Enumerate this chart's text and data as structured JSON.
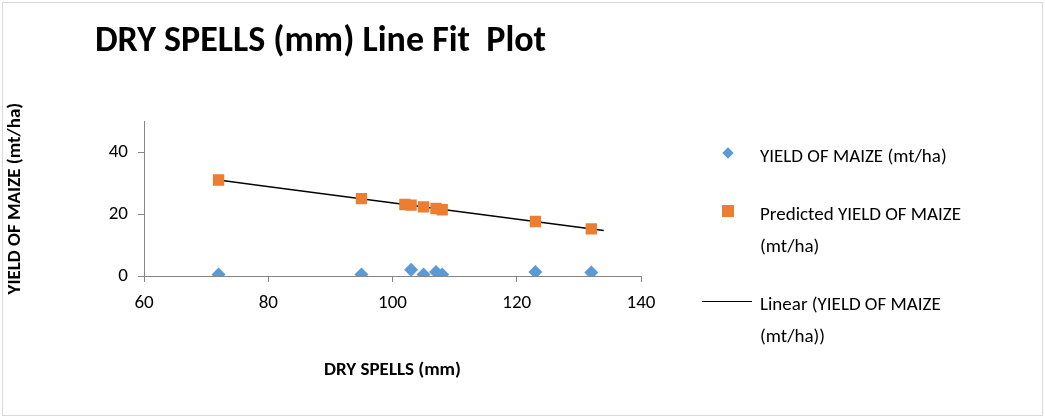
{
  "chart_data": {
    "type": "scatter",
    "title": "DRY SPELLS (mm) Line Fit  Plot",
    "xlabel": "DRY SPELLS (mm)",
    "ylabel": "YIELD OF MAIZE (mt/ha)",
    "xlim": [
      60,
      140
    ],
    "xticks": [
      60,
      80,
      100,
      120,
      140
    ],
    "ylim": [
      0,
      50
    ],
    "yticks": [
      0,
      20,
      40
    ],
    "grid": false,
    "legend": "right",
    "series": [
      {
        "name": "YIELD OF MAIZE (mt/ha)",
        "marker": "diamond",
        "color": "#5b9bd5",
        "x": [
          72,
          95,
          103,
          105,
          107,
          108,
          123,
          132
        ],
        "values": [
          0.5,
          0.5,
          2.0,
          0.5,
          1.3,
          0.5,
          1.3,
          1.1
        ]
      },
      {
        "name": "Predicted YIELD OF MAIZE (mt/ha)",
        "marker": "square",
        "color": "#ed7d31",
        "x": [
          72,
          95,
          102,
          103,
          105,
          107,
          108,
          123,
          132
        ],
        "values": [
          31.0,
          25.0,
          23.1,
          22.9,
          22.3,
          21.8,
          21.4,
          17.6,
          15.2
        ]
      },
      {
        "name": "Linear (YIELD OF MAIZE (mt/ha))",
        "type": "line",
        "marker": "none",
        "line_style": "solid",
        "color": "#000000",
        "x": [
          72,
          134
        ],
        "values": [
          31.0,
          14.7
        ]
      }
    ]
  }
}
